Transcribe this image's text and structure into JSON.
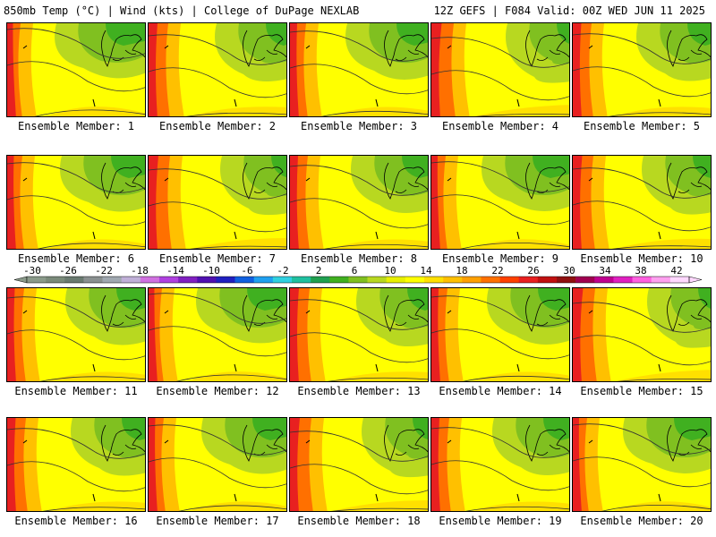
{
  "header": {
    "left_title": "850mb Temp (°C) | Wind (kts) | College of DuPage NEXLAB",
    "right_title": "12Z GEFS | F084 Valid: 00Z WED JUN 11 2025"
  },
  "panels": [
    {
      "label": "Ensemble Member: 1"
    },
    {
      "label": "Ensemble Member: 2"
    },
    {
      "label": "Ensemble Member: 3"
    },
    {
      "label": "Ensemble Member: 4"
    },
    {
      "label": "Ensemble Member: 5"
    },
    {
      "label": "Ensemble Member: 6"
    },
    {
      "label": "Ensemble Member: 7"
    },
    {
      "label": "Ensemble Member: 8"
    },
    {
      "label": "Ensemble Member: 9"
    },
    {
      "label": "Ensemble Member: 10"
    },
    {
      "label": "Ensemble Member: 11"
    },
    {
      "label": "Ensemble Member: 12"
    },
    {
      "label": "Ensemble Member: 13"
    },
    {
      "label": "Ensemble Member: 14"
    },
    {
      "label": "Ensemble Member: 15"
    },
    {
      "label": "Ensemble Member: 16"
    },
    {
      "label": "Ensemble Member: 17"
    },
    {
      "label": "Ensemble Member: 18"
    },
    {
      "label": "Ensemble Member: 19"
    },
    {
      "label": "Ensemble Member: 20"
    }
  ],
  "colorbar": {
    "tick_labels": [
      "-30",
      "-26",
      "-22",
      "-18",
      "-14",
      "-10",
      "-6",
      "-2",
      "2",
      "6",
      "10",
      "14",
      "18",
      "22",
      "26",
      "30",
      "34",
      "38",
      "42"
    ],
    "colors": [
      "#8a9a8a",
      "#7a8a7a",
      "#6a7a70",
      "#8a9090",
      "#a0a8b0",
      "#c0b0d8",
      "#d070e0",
      "#b040e0",
      "#8020c0",
      "#5010b0",
      "#2020c0",
      "#1060e0",
      "#20a0f0",
      "#30d0e0",
      "#20c0a0",
      "#20a050",
      "#40b020",
      "#80c020",
      "#b8d820",
      "#e8f000",
      "#ffff00",
      "#ffe000",
      "#ffc000",
      "#ffa000",
      "#ff7000",
      "#ff4000",
      "#e82020",
      "#c01010",
      "#901010",
      "#a00050",
      "#c00090",
      "#e020c0",
      "#ff60e0",
      "#ffa0f0",
      "#ffd8ff"
    ]
  }
}
